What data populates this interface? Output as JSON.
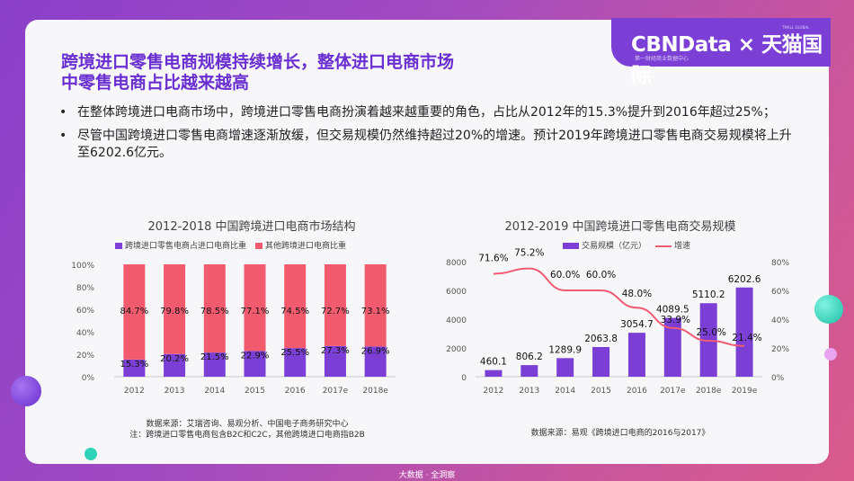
{
  "logo": {
    "brand": "CBNData × 天猫国际",
    "tagline": "第一财经商业数据中心",
    "tmall_tag": "TMALL GLOBAL"
  },
  "title": [
    "跨境进口零售电商规模持续增长，整体进口电商市场",
    "中零售电商占比越来越高"
  ],
  "bullets": [
    "在整体跨境进口电商市场中，跨境进口零售电商扮演着越来越重要的角色，占比从2012年的15.3%提升到2016年超过25%；",
    "尽管中国跨境进口零售电商增速逐渐放缓，但交易规模仍然维持超过20%的增速。预计2019年跨境进口零售电商交易规模将上升至6202.6亿元。"
  ],
  "colors": {
    "purple": "#7b3fd6",
    "pink": "#f25a6e",
    "line": "#ef5b73"
  },
  "chart_data": [
    {
      "type": "bar",
      "stacked": true,
      "title": "2012-2018 中国跨境进口电商市场结构",
      "categories": [
        "2012",
        "2013",
        "2014",
        "2015",
        "2016",
        "2017e",
        "2018e"
      ],
      "series": [
        {
          "name": "跨境进口零售电商占进口电商比重",
          "values": [
            15.3,
            20.2,
            21.5,
            22.9,
            25.5,
            27.3,
            26.9
          ],
          "labels": [
            "15.3%",
            "20.2%",
            "21.5%",
            "22.9%",
            "25.5%",
            "27.3%",
            "26.9%"
          ]
        },
        {
          "name": "其他跨境进口电商比重",
          "values": [
            84.7,
            79.8,
            78.5,
            77.1,
            74.5,
            72.7,
            73.1
          ],
          "labels": [
            "84.7%",
            "79.8%",
            "78.5%",
            "77.1%",
            "74.5%",
            "72.7%",
            "73.1%"
          ]
        }
      ],
      "ylim": [
        0,
        100
      ],
      "yticks": [
        "0%",
        "20%",
        "40%",
        "60%",
        "80%",
        "100%"
      ],
      "legend": "top",
      "source": "数据来源：艾瑞咨询、易观分析、中国电子商务研究中心",
      "note": "注：跨境进口零售电商包含B2C和C2C，其他跨境进口电商指B2B"
    },
    {
      "type": "bar+line",
      "title": "2012-2019 中国跨境进口零售电商交易规模",
      "categories": [
        "2012",
        "2013",
        "2014",
        "2015",
        "2016",
        "2017e",
        "2018e",
        "2019e"
      ],
      "series": [
        {
          "name": "交易规模（亿元）",
          "type": "bar",
          "values": [
            460.1,
            806.2,
            1289.9,
            2063.8,
            3054.7,
            4089.5,
            5110.2,
            6202.6
          ],
          "labels": [
            "460.1",
            "806.2",
            "1289.9",
            "2063.8",
            "3054.7",
            "4089.5",
            "5110.2",
            "6202.6"
          ]
        },
        {
          "name": "增速",
          "type": "line",
          "axis": "right",
          "values": [
            71.6,
            75.2,
            60.0,
            60.0,
            48.0,
            33.9,
            25.0,
            21.4
          ],
          "labels": [
            "71.6%",
            "75.2%",
            "60.0%",
            "60.0%",
            "48.0%",
            "33.9%",
            "25.0%",
            "21.4%"
          ]
        }
      ],
      "ylim": [
        0,
        8000
      ],
      "yticks": [
        "0",
        "2000",
        "4000",
        "6000",
        "8000"
      ],
      "y2lim": [
        0,
        80
      ],
      "y2ticks": [
        "0%",
        "20%",
        "40%",
        "60%",
        "80%"
      ],
      "legend": "top",
      "source": "数据来源：易观《跨境进口电商的2016与2017》"
    }
  ],
  "footer": "大数据 · 全洞察"
}
